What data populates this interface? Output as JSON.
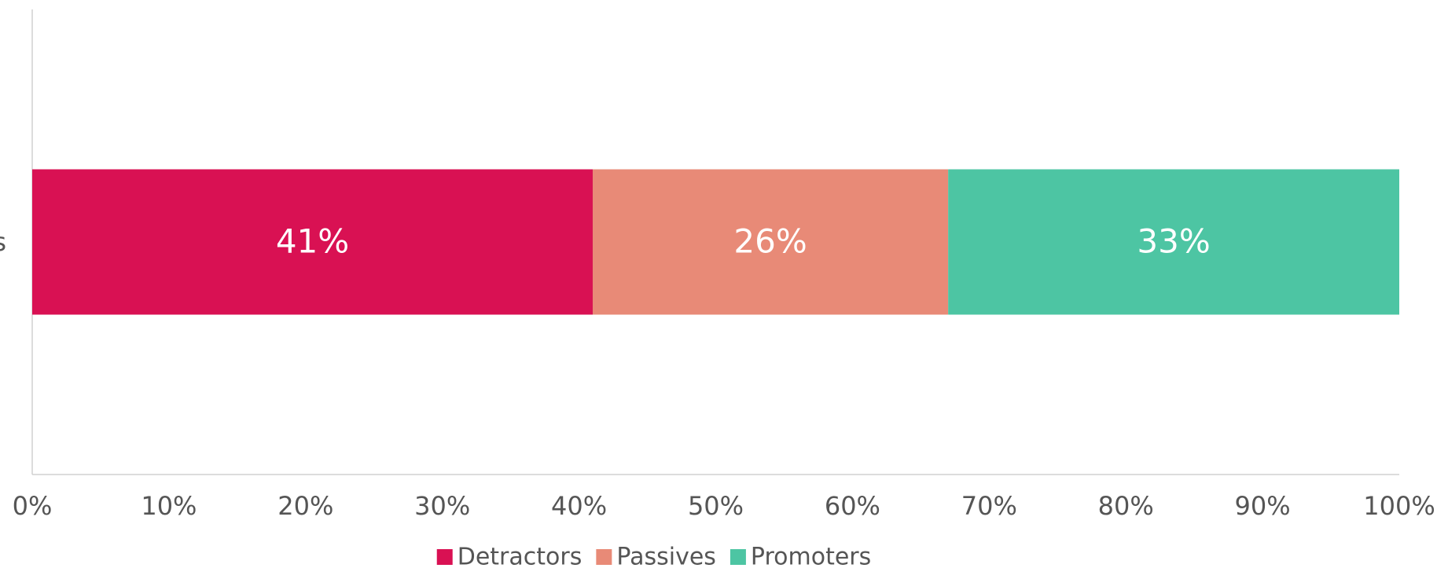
{
  "chart_data": {
    "type": "stacked_barh",
    "categories": [
      "s"
    ],
    "series": [
      {
        "name": "Detractors",
        "color": "#d91153",
        "values": [
          41
        ],
        "value_labels": [
          "41%"
        ]
      },
      {
        "name": "Passives",
        "color": "#e88a77",
        "values": [
          26
        ],
        "value_labels": [
          "26%"
        ]
      },
      {
        "name": "Promoters",
        "color": "#4dc5a3",
        "values": [
          33
        ],
        "value_labels": [
          "33%"
        ]
      }
    ],
    "xlim": [
      0,
      100
    ],
    "xticks": [
      {
        "value": 0,
        "label": "0%"
      },
      {
        "value": 10,
        "label": "10%"
      },
      {
        "value": 20,
        "label": "20%"
      },
      {
        "value": 30,
        "label": "30%"
      },
      {
        "value": 40,
        "label": "40%"
      },
      {
        "value": 50,
        "label": "50%"
      },
      {
        "value": 60,
        "label": "60%"
      },
      {
        "value": 70,
        "label": "70%"
      },
      {
        "value": 80,
        "label": "80%"
      },
      {
        "value": 90,
        "label": "90%"
      },
      {
        "value": 100,
        "label": "100%"
      }
    ],
    "grid": false,
    "legend": "bottom"
  }
}
